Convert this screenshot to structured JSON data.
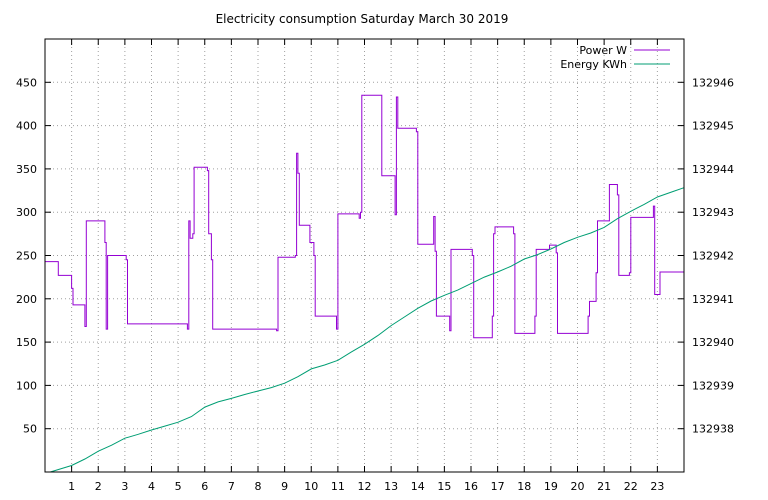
{
  "chart_data": {
    "type": "line",
    "title": "Electricity consumption Saturday March 30 2019",
    "xlabel": "",
    "ylabel": "",
    "y2label": "",
    "xlim": [
      0,
      24
    ],
    "ylim": [
      0,
      500
    ],
    "y2lim": [
      132937,
      132947
    ],
    "x_ticks": [
      1,
      2,
      3,
      4,
      5,
      6,
      7,
      8,
      9,
      10,
      11,
      12,
      13,
      14,
      15,
      16,
      17,
      18,
      19,
      20,
      21,
      22,
      23
    ],
    "y_ticks": [
      50,
      100,
      150,
      200,
      250,
      300,
      350,
      400,
      450
    ],
    "y2_ticks": [
      132938,
      132939,
      132940,
      132941,
      132942,
      132943,
      132944,
      132945,
      132946
    ],
    "grid": true,
    "legend_position": "top-right",
    "colors": {
      "power": "#9400d3",
      "energy": "#009e73"
    },
    "series": [
      {
        "name": "Power W",
        "axis": "left",
        "step": true,
        "points": [
          [
            0,
            243
          ],
          [
            0.5,
            227
          ],
          [
            1.0,
            212
          ],
          [
            1.05,
            193
          ],
          [
            1.5,
            168
          ],
          [
            1.55,
            290
          ],
          [
            2.25,
            265
          ],
          [
            2.3,
            165
          ],
          [
            2.35,
            250
          ],
          [
            3.05,
            245
          ],
          [
            3.1,
            171
          ],
          [
            5.35,
            165
          ],
          [
            5.4,
            290
          ],
          [
            5.45,
            270
          ],
          [
            5.55,
            275
          ],
          [
            5.6,
            352
          ],
          [
            6.1,
            348
          ],
          [
            6.15,
            275
          ],
          [
            6.25,
            245
          ],
          [
            6.3,
            165
          ],
          [
            8.7,
            163
          ],
          [
            8.75,
            248
          ],
          [
            9.4,
            250
          ],
          [
            9.45,
            368
          ],
          [
            9.5,
            345
          ],
          [
            9.55,
            285
          ],
          [
            9.95,
            265
          ],
          [
            10.1,
            250
          ],
          [
            10.15,
            180
          ],
          [
            10.95,
            165
          ],
          [
            11.0,
            298
          ],
          [
            11.8,
            293
          ],
          [
            11.85,
            300
          ],
          [
            11.9,
            435
          ],
          [
            12.65,
            342
          ],
          [
            13.15,
            297
          ],
          [
            13.2,
            433
          ],
          [
            13.25,
            397
          ],
          [
            13.95,
            393
          ],
          [
            14.0,
            263
          ],
          [
            14.6,
            295
          ],
          [
            14.65,
            255
          ],
          [
            14.7,
            180
          ],
          [
            15.2,
            163
          ],
          [
            15.25,
            257
          ],
          [
            16.05,
            250
          ],
          [
            16.1,
            155
          ],
          [
            16.8,
            180
          ],
          [
            16.85,
            275
          ],
          [
            16.9,
            283
          ],
          [
            17.6,
            275
          ],
          [
            17.65,
            160
          ],
          [
            18.4,
            180
          ],
          [
            18.45,
            257
          ],
          [
            18.95,
            262
          ],
          [
            19.2,
            253
          ],
          [
            19.25,
            160
          ],
          [
            20.4,
            180
          ],
          [
            20.45,
            197
          ],
          [
            20.7,
            230
          ],
          [
            20.75,
            290
          ],
          [
            21.2,
            332
          ],
          [
            21.5,
            320
          ],
          [
            21.55,
            227
          ],
          [
            21.95,
            230
          ],
          [
            22.0,
            294
          ],
          [
            22.85,
            307
          ],
          [
            22.9,
            205
          ],
          [
            23.1,
            231
          ],
          [
            23.6,
            231
          ]
        ]
      },
      {
        "name": "Energy KWh",
        "axis": "right",
        "step": false,
        "points": [
          [
            0.2,
            132937.0
          ],
          [
            1.0,
            132937.15
          ],
          [
            1.5,
            132937.3
          ],
          [
            2.0,
            132937.48
          ],
          [
            2.5,
            132937.62
          ],
          [
            3.0,
            132937.78
          ],
          [
            3.5,
            132937.87
          ],
          [
            4.0,
            132937.97
          ],
          [
            4.5,
            132938.06
          ],
          [
            5.0,
            132938.15
          ],
          [
            5.5,
            132938.28
          ],
          [
            6.0,
            132938.5
          ],
          [
            6.5,
            132938.62
          ],
          [
            7.0,
            132938.7
          ],
          [
            7.5,
            132938.79
          ],
          [
            8.0,
            132938.87
          ],
          [
            8.5,
            132938.95
          ],
          [
            9.0,
            132939.05
          ],
          [
            9.5,
            132939.2
          ],
          [
            10.0,
            132939.38
          ],
          [
            10.5,
            132939.47
          ],
          [
            11.0,
            132939.58
          ],
          [
            11.5,
            132939.77
          ],
          [
            12.0,
            132939.95
          ],
          [
            12.5,
            132940.15
          ],
          [
            13.0,
            132940.38
          ],
          [
            13.5,
            132940.58
          ],
          [
            14.0,
            132940.78
          ],
          [
            14.5,
            132940.95
          ],
          [
            15.0,
            132941.08
          ],
          [
            15.5,
            132941.2
          ],
          [
            16.0,
            132941.35
          ],
          [
            16.5,
            132941.5
          ],
          [
            17.0,
            132941.62
          ],
          [
            17.5,
            132941.75
          ],
          [
            18.0,
            132941.92
          ],
          [
            18.5,
            132942.02
          ],
          [
            19.0,
            132942.15
          ],
          [
            19.5,
            132942.3
          ],
          [
            20.0,
            132942.42
          ],
          [
            20.5,
            132942.52
          ],
          [
            21.0,
            132942.65
          ],
          [
            21.5,
            132942.85
          ],
          [
            22.0,
            132943.02
          ],
          [
            22.5,
            132943.18
          ],
          [
            23.0,
            132943.35
          ],
          [
            23.6,
            132943.48
          ]
        ]
      }
    ]
  }
}
